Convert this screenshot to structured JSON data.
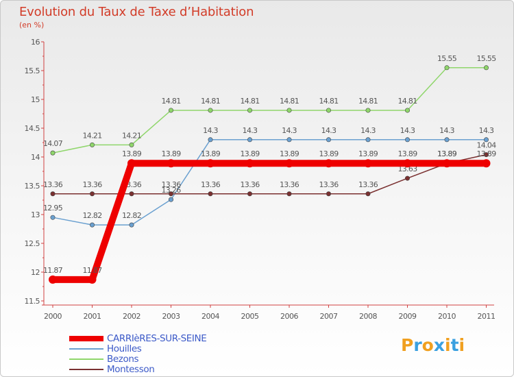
{
  "title": "Evolution du Taux de Taxe d’Habitation",
  "subtitle": "(en %)",
  "logo": {
    "letters": [
      "P",
      "r",
      "o",
      "x",
      "i",
      "t",
      "i"
    ],
    "colors": [
      "#f0a020",
      "#3aa0e0",
      "#f0a020",
      "#3aa0e0",
      "#f0a020",
      "#3aa0e0",
      "#f0a020"
    ]
  },
  "chart_data": {
    "type": "line",
    "title": "Evolution du Taux de Taxe d’Habitation",
    "ylabel": "(en %)",
    "xlabel": "",
    "categories": [
      "2000",
      "2001",
      "2002",
      "2003",
      "2004",
      "2005",
      "2006",
      "2007",
      "2008",
      "2009",
      "2010",
      "2011"
    ],
    "ylim": [
      11.5,
      16
    ],
    "yticks": [
      "11.5",
      "12",
      "12.5",
      "13",
      "13.5",
      "14",
      "14.5",
      "15",
      "15.5",
      "16"
    ],
    "grid": false,
    "legend_position": "bottom-left",
    "series": [
      {
        "name": "Bezons",
        "color": "#8fd66b",
        "labelColor": "#555555",
        "values": [
          14.07,
          14.21,
          14.21,
          14.81,
          14.81,
          14.81,
          14.81,
          14.81,
          14.81,
          14.81,
          15.55,
          15.55
        ],
        "labels": [
          "14.07",
          "14.21",
          "14.21",
          "14.81",
          "14.81",
          "14.81",
          "14.81",
          "14.81",
          "14.81",
          "14.81",
          "15.55",
          "15.55"
        ]
      },
      {
        "name": "Houilles",
        "color": "#6aa0d0",
        "labelColor": "#555555",
        "values": [
          12.95,
          12.82,
          12.82,
          13.26,
          14.3,
          14.3,
          14.3,
          14.3,
          14.3,
          14.3,
          14.3,
          14.3
        ],
        "labels": [
          "12.95",
          "12.82",
          "12.82",
          "13.26",
          "14.3",
          "14.3",
          "14.3",
          "14.3",
          "14.3",
          "14.3",
          "14.3",
          "14.3"
        ]
      },
      {
        "name": "Montesson",
        "color": "#7a3030",
        "labelColor": "#555555",
        "values": [
          13.36,
          13.36,
          13.36,
          13.36,
          13.36,
          13.36,
          13.36,
          13.36,
          13.36,
          13.63,
          13.89,
          14.04
        ],
        "labels": [
          "13.36",
          "13.36",
          "13.36",
          "13.36",
          "13.36",
          "13.36",
          "13.36",
          "13.36",
          "13.36",
          "13.63",
          "13.89",
          "14.04"
        ]
      },
      {
        "name": "CARRIèRES-SUR-SEINE",
        "color": "#ee0000",
        "labelColor": "#555555",
        "values": [
          11.87,
          11.87,
          13.89,
          13.89,
          13.89,
          13.89,
          13.89,
          13.89,
          13.89,
          13.89,
          13.89,
          13.89
        ],
        "labels": [
          "11.87",
          "11.87",
          "13.89",
          "13.89",
          "13.89",
          "13.89",
          "13.89",
          "13.89",
          "13.89",
          "13.89",
          "13.89",
          "13.89"
        ]
      }
    ],
    "legend": [
      "CARRIèRES-SUR-SEINE",
      "Houilles",
      "Bezons",
      "Montesson"
    ]
  }
}
